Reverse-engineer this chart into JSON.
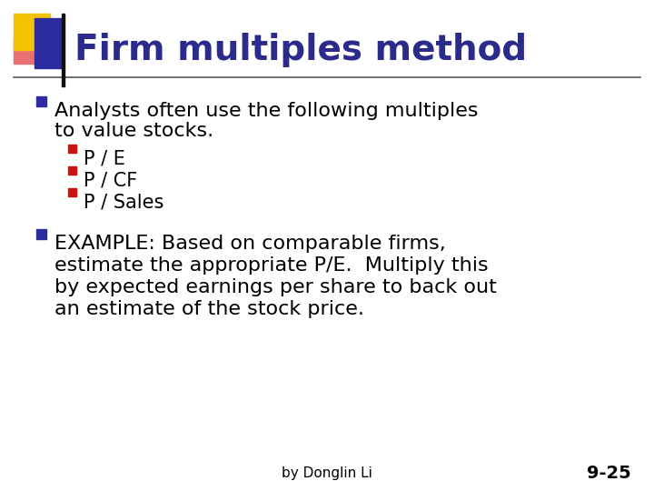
{
  "title": "Firm multiples method",
  "title_color": "#2B2B8C",
  "title_fontsize": 28,
  "background_color": "#FFFFFF",
  "bullet1_line1": "Analysts often use the following multiples",
  "bullet1_line2": "to value stocks.",
  "sub_bullets": [
    "P / E",
    "P / CF",
    "P / Sales"
  ],
  "bullet2_lines": [
    "EXAMPLE: Based on comparable firms,",
    "estimate the appropriate P/E.  Multiply this",
    "by expected earnings per share to back out",
    "an estimate of the stock price."
  ],
  "text_color": "#000000",
  "footer_left": "by Donglin Li",
  "footer_right": "9-25",
  "footer_fontsize": 11,
  "body_fontsize": 16,
  "sub_body_fontsize": 15,
  "header_line_color": "#555555",
  "square_yellow": "#F5C200",
  "square_blue": "#2B2B9E",
  "square_red": "#CC1111",
  "square_pink": "#E87070",
  "bullet_marker_color_main": "#2B2B9E",
  "bullet_marker_color_sub": "#CC1111"
}
